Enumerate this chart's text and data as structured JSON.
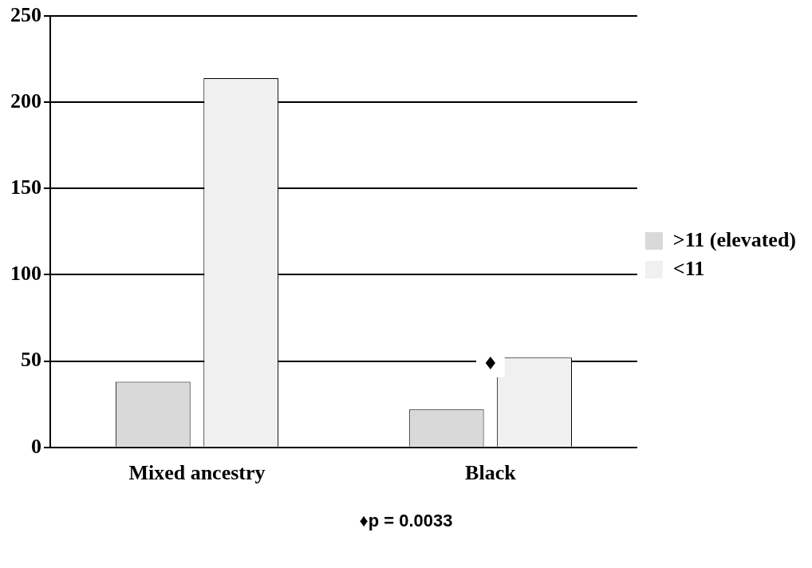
{
  "chart_data": {
    "type": "bar",
    "categories": [
      "Mixed ancestry",
      "Black"
    ],
    "series": [
      {
        "name": ">11 (elevated)",
        "color": "#d9d9d9",
        "values": [
          38,
          22
        ]
      },
      {
        "name": "<11",
        "color": "#f0f0f0",
        "values": [
          214,
          52
        ]
      }
    ],
    "ylim": [
      0,
      250
    ],
    "yticks": [
      0,
      50,
      100,
      150,
      200,
      250
    ],
    "grid": "y",
    "legend": "right",
    "annotations": [
      {
        "text": "♦",
        "x": "Black",
        "y": 48
      },
      "♦p = 0.0033"
    ]
  }
}
